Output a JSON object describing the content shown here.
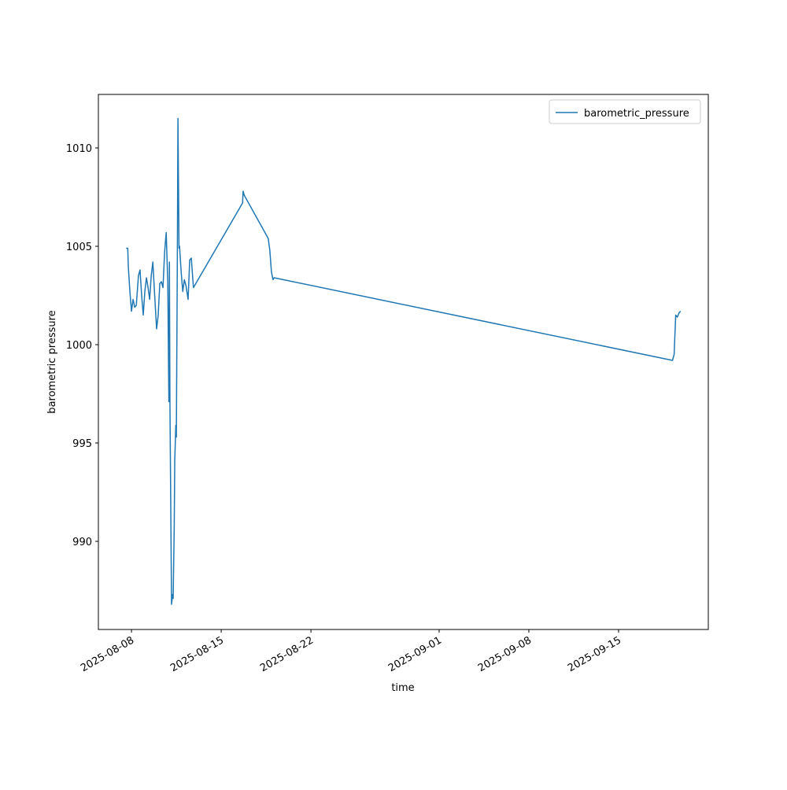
{
  "chart_data": {
    "type": "line",
    "xlabel": "time",
    "ylabel": "barometric pressure",
    "legend": "upper right",
    "grid": false,
    "x": [
      "2025-08-07 14:00",
      "2025-08-07 17:00",
      "2025-08-07 18:00",
      "2025-08-07 21:00",
      "2025-08-08 00:00",
      "2025-08-08 03:00",
      "2025-08-08 06:00",
      "2025-08-08 09:00",
      "2025-08-08 13:00",
      "2025-08-08 16:00",
      "2025-08-08 19:00",
      "2025-08-08 22:00",
      "2025-08-09 01:00",
      "2025-08-09 04:00",
      "2025-08-09 07:00",
      "2025-08-09 10:00",
      "2025-08-09 13:00",
      "2025-08-09 16:00",
      "2025-08-09 19:00",
      "2025-08-09 23:00",
      "2025-08-10 02:00",
      "2025-08-10 05:00",
      "2025-08-10 08:00",
      "2025-08-10 11:00",
      "2025-08-10 14:00",
      "2025-08-10 17:00",
      "2025-08-10 20:00",
      "2025-08-10 22:00",
      "2025-08-10 23:00",
      "2025-08-11 00:00",
      "2025-08-11 03:00",
      "2025-08-11 05:00",
      "2025-08-11 06:00",
      "2025-08-11 08:00",
      "2025-08-11 09:00",
      "2025-08-11 11:00",
      "2025-08-11 12:00",
      "2025-08-11 14:00",
      "2025-08-11 15:00",
      "2025-08-11 17:00",
      "2025-08-11 18:00",
      "2025-08-11 21:00",
      "2025-08-12 00:00",
      "2025-08-12 03:00",
      "2025-08-12 06:00",
      "2025-08-12 10:00",
      "2025-08-12 13:00",
      "2025-08-12 16:00",
      "2025-08-12 20:00",
      "2025-08-16 16:00",
      "2025-08-16 17:00",
      "2025-08-16 19:00",
      "2025-08-18 16:00",
      "2025-08-18 19:00",
      "2025-08-18 22:00",
      "2025-08-19 01:00",
      "2025-08-19 03:00",
      "2025-09-19 05:00",
      "2025-09-19 08:00",
      "2025-09-19 11:00",
      "2025-09-19 14:00",
      "2025-09-19 17:00",
      "2025-09-19 20:00"
    ],
    "series": [
      {
        "name": "barometric_pressure",
        "color": "#1f77b4",
        "values": [
          1004.9,
          1004.9,
          1004.0,
          1002.7,
          1001.7,
          1002.3,
          1001.9,
          1002.0,
          1003.5,
          1003.8,
          1002.5,
          1001.5,
          1002.7,
          1003.4,
          1002.9,
          1002.3,
          1003.5,
          1004.2,
          1002.7,
          1000.8,
          1001.5,
          1003.1,
          1003.2,
          1002.9,
          1004.7,
          1005.7,
          1003.1,
          997.1,
          1004.2,
          997.0,
          986.8,
          987.3,
          987.1,
          990.7,
          994.1,
          995.9,
          995.3,
          1005.2,
          1011.5,
          1004.9,
          1005.0,
          1003.7,
          1002.7,
          1003.3,
          1003.0,
          1002.3,
          1004.3,
          1004.4,
          1002.9,
          1007.2,
          1007.8,
          1007.6,
          1005.4,
          1004.8,
          1003.7,
          1003.3,
          1003.4,
          999.2,
          999.5,
          1001.5,
          1001.4,
          1001.6,
          1001.7
        ]
      }
    ],
    "xlim": [
      "2025-08-05 10:00",
      "2025-09-22 00:00"
    ],
    "xticks": [
      "2025-08-08",
      "2025-08-15",
      "2025-08-22",
      "2025-09-01",
      "2025-09-08",
      "2025-09-15"
    ],
    "ylim": [
      985.52,
      1012.72
    ],
    "yticks": [
      990,
      995,
      1000,
      1005,
      1010
    ]
  }
}
